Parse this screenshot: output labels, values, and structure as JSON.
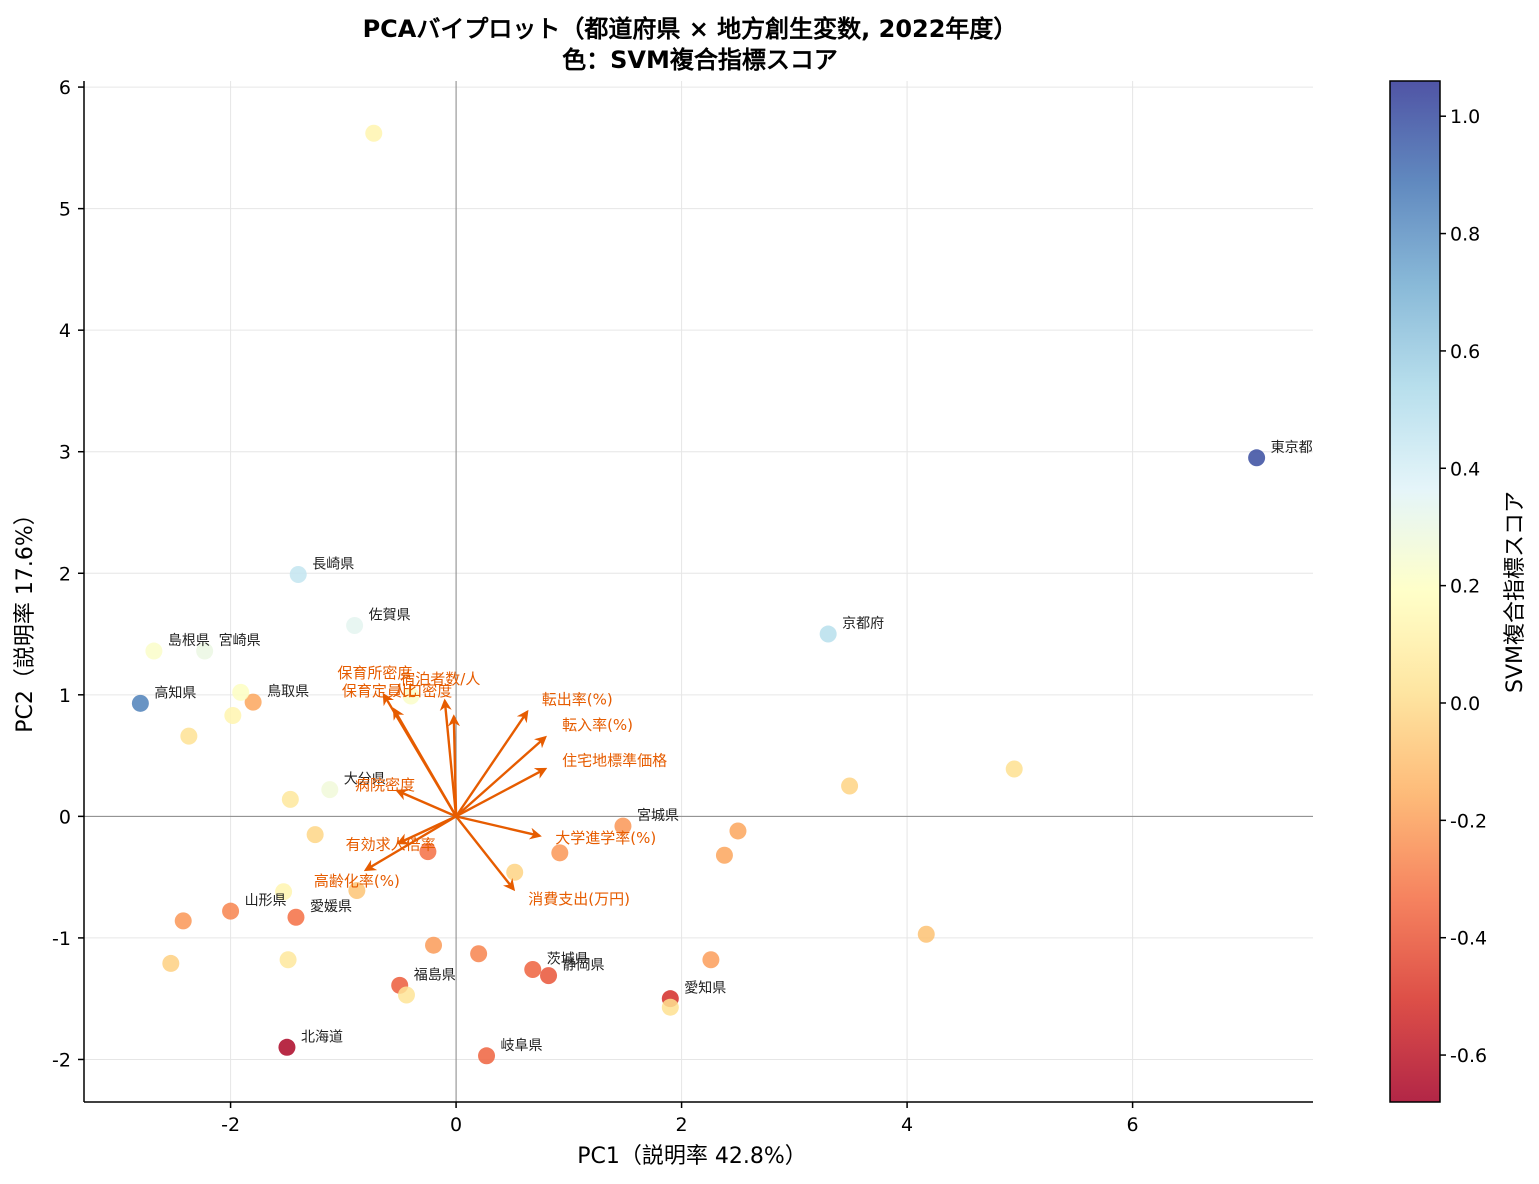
{
  "chart_data": {
    "type": "scatter",
    "title": "PCAバイプロット（都道府県 × 地方創生変数, 2022年度）",
    "subtitle": "色：SVM複合指標スコア",
    "xlabel": "PC1（説明率 42.8%）",
    "ylabel": "PC2（説明率 17.6%）",
    "xlim": [
      -3.3,
      7.6
    ],
    "ylim": [
      -2.35,
      6.05
    ],
    "xticks": [
      -2,
      0,
      2,
      4,
      6
    ],
    "xtick_labels": [
      "-2",
      "0",
      "2",
      "4",
      "6"
    ],
    "yticks": [
      -2,
      -1,
      0,
      1,
      2,
      3,
      4,
      5,
      6
    ],
    "ytick_labels": [
      "-2",
      "-1",
      "0",
      "1",
      "2",
      "3",
      "4",
      "5",
      "6"
    ],
    "grid": true,
    "colorbar": {
      "label": "SVM複合指標スコア",
      "colormap": "RdYlBu",
      "vmin": -0.68,
      "vmax": 1.06,
      "ticks": [
        -0.6,
        -0.4,
        -0.2,
        0.0,
        0.2,
        0.4,
        0.6,
        0.8,
        1.0
      ],
      "tick_labels": [
        "-0.6",
        "-0.4",
        "-0.2",
        "0.0",
        "0.2",
        "0.4",
        "0.6",
        "0.8",
        "1.0"
      ]
    },
    "points": [
      {
        "x": 7.1,
        "y": 2.95,
        "score": 1.0,
        "label": "東京都"
      },
      {
        "x": 3.3,
        "y": 1.5,
        "score": 0.5,
        "label": "京都府"
      },
      {
        "x": -1.4,
        "y": 1.99,
        "score": 0.46,
        "label": "長崎県"
      },
      {
        "x": -0.9,
        "y": 1.57,
        "score": 0.34,
        "label": "佐賀県"
      },
      {
        "x": -2.68,
        "y": 1.36,
        "score": 0.22,
        "label": "島根県"
      },
      {
        "x": -2.23,
        "y": 1.36,
        "score": 0.3,
        "label": "宮崎県"
      },
      {
        "x": -2.8,
        "y": 0.93,
        "score": 0.85,
        "label": "高知県"
      },
      {
        "x": -1.8,
        "y": 0.94,
        "score": -0.18,
        "label": "鳥取県"
      },
      {
        "x": -1.12,
        "y": 0.22,
        "score": 0.27,
        "label": "大分県"
      },
      {
        "x": 1.48,
        "y": -0.08,
        "score": -0.22,
        "label": "宮城県"
      },
      {
        "x": -2.0,
        "y": -0.78,
        "score": -0.27,
        "label": "山形県"
      },
      {
        "x": -1.42,
        "y": -0.83,
        "score": -0.33,
        "label": "愛媛県"
      },
      {
        "x": 0.68,
        "y": -1.26,
        "score": -0.36,
        "label": "茨城県"
      },
      {
        "x": 0.82,
        "y": -1.31,
        "score": -0.4,
        "label": "静岡県"
      },
      {
        "x": 1.9,
        "y": -1.5,
        "score": -0.52,
        "label": "愛知県"
      },
      {
        "x": -0.5,
        "y": -1.39,
        "score": -0.38,
        "label": "福島県"
      },
      {
        "x": -1.5,
        "y": -1.9,
        "score": -0.66,
        "label": "北海道"
      },
      {
        "x": 0.27,
        "y": -1.97,
        "score": -0.36,
        "label": "岐阜県"
      },
      {
        "x": -0.73,
        "y": 5.62,
        "score": 0.13,
        "label": ""
      },
      {
        "x": -1.91,
        "y": 1.02,
        "score": 0.2,
        "label": ""
      },
      {
        "x": -1.98,
        "y": 0.83,
        "score": 0.13,
        "label": ""
      },
      {
        "x": -2.37,
        "y": 0.66,
        "score": 0.03,
        "label": ""
      },
      {
        "x": -0.4,
        "y": 0.99,
        "score": 0.22,
        "label": ""
      },
      {
        "x": -1.47,
        "y": 0.14,
        "score": 0.06,
        "label": ""
      },
      {
        "x": -1.25,
        "y": -0.15,
        "score": -0.02,
        "label": ""
      },
      {
        "x": -0.25,
        "y": -0.29,
        "score": -0.33,
        "label": ""
      },
      {
        "x": 0.92,
        "y": -0.3,
        "score": -0.22,
        "label": ""
      },
      {
        "x": 0.52,
        "y": -0.46,
        "score": -0.03,
        "label": ""
      },
      {
        "x": -0.88,
        "y": -0.61,
        "score": -0.08,
        "label": ""
      },
      {
        "x": -1.53,
        "y": -0.62,
        "score": 0.13,
        "label": ""
      },
      {
        "x": -2.42,
        "y": -0.86,
        "score": -0.22,
        "label": ""
      },
      {
        "x": -2.53,
        "y": -1.21,
        "score": -0.04,
        "label": ""
      },
      {
        "x": -1.49,
        "y": -1.18,
        "score": 0.06,
        "label": ""
      },
      {
        "x": -0.2,
        "y": -1.06,
        "score": -0.21,
        "label": ""
      },
      {
        "x": 0.2,
        "y": -1.13,
        "score": -0.27,
        "label": ""
      },
      {
        "x": -0.44,
        "y": -1.47,
        "score": 0.04,
        "label": ""
      },
      {
        "x": 1.9,
        "y": -1.57,
        "score": 0.02,
        "label": ""
      },
      {
        "x": 2.26,
        "y": -1.18,
        "score": -0.2,
        "label": ""
      },
      {
        "x": 2.38,
        "y": -0.32,
        "score": -0.18,
        "label": ""
      },
      {
        "x": 2.5,
        "y": -0.12,
        "score": -0.18,
        "label": ""
      },
      {
        "x": 3.49,
        "y": 0.25,
        "score": -0.03,
        "label": ""
      },
      {
        "x": 4.95,
        "y": 0.39,
        "score": 0.02,
        "label": ""
      },
      {
        "x": 4.17,
        "y": -0.97,
        "score": -0.09,
        "label": ""
      }
    ],
    "loadings": [
      {
        "x": -0.64,
        "y": 1.0,
        "label": "保育所密度",
        "lx": -0.72,
        "ly": 1.18
      },
      {
        "x": -0.55,
        "y": 0.88,
        "label": "保育定員比",
        "lx": -0.68,
        "ly": 1.03
      },
      {
        "x": -0.1,
        "y": 0.95,
        "label": "宿泊者数/人",
        "lx": -0.14,
        "ly": 1.13
      },
      {
        "x": -0.02,
        "y": 0.82,
        "label": "人口密度",
        "lx": -0.3,
        "ly": 1.03
      },
      {
        "x": 0.63,
        "y": 0.86,
        "label": "転出率(%)",
        "lx": 0.76,
        "ly": 0.96
      },
      {
        "x": 0.79,
        "y": 0.65,
        "label": "転入率(%)",
        "lx": 0.94,
        "ly": 0.75
      },
      {
        "x": 0.79,
        "y": 0.39,
        "label": "住宅地標準価格",
        "lx": 0.94,
        "ly": 0.46
      },
      {
        "x": -0.52,
        "y": 0.21,
        "label": "病院密度",
        "lx": -0.63,
        "ly": 0.26
      },
      {
        "x": 0.74,
        "y": -0.16,
        "label": "大学進学率(%)",
        "lx": 0.88,
        "ly": -0.18
      },
      {
        "x": -0.51,
        "y": -0.22,
        "label": "有効求人倍率",
        "lx": -0.58,
        "ly": -0.23
      },
      {
        "x": 0.51,
        "y": -0.6,
        "label": "消費支出(万円)",
        "lx": 0.64,
        "ly": -0.68
      },
      {
        "x": -0.8,
        "y": -0.44,
        "label": "高齢化率(%)",
        "lx": -0.88,
        "ly": -0.53
      }
    ]
  }
}
